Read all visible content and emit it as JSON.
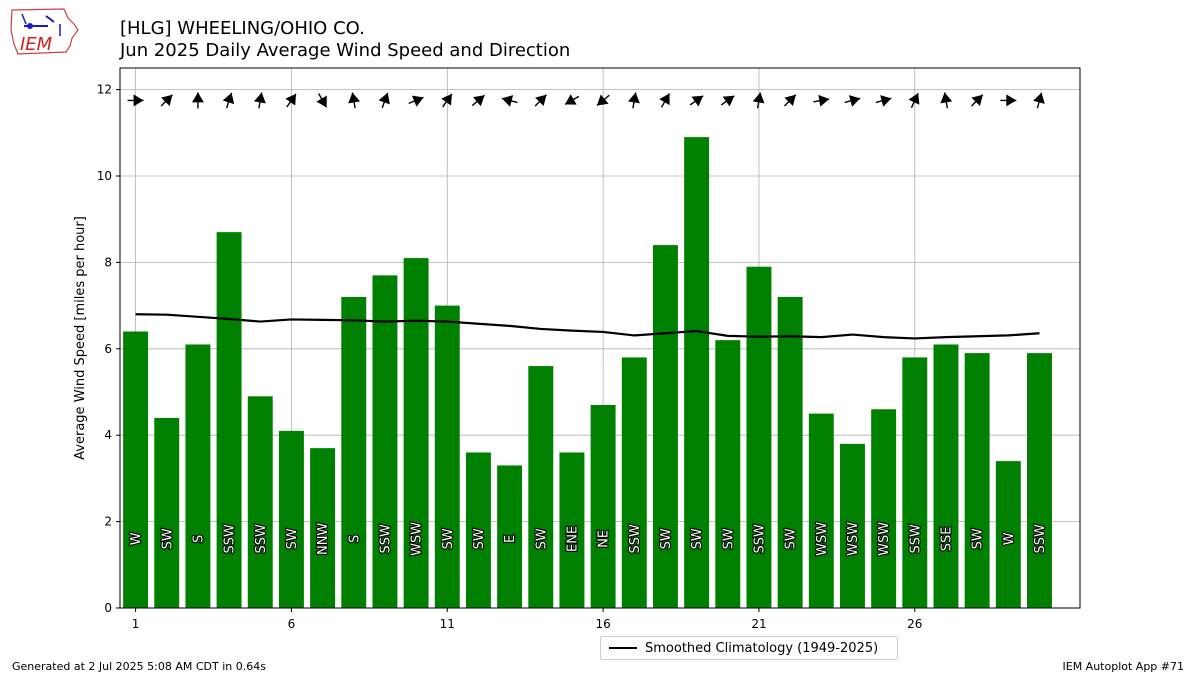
{
  "header": {
    "line1": "[HLG] WHEELING/OHIO CO.",
    "line2": "Jun 2025 Daily Average Wind Speed and Direction",
    "logo_text": "IEM"
  },
  "footer": {
    "generated": "Generated at 2 Jul 2025 5:08 AM CDT in 0.64s",
    "app": "IEM Autoplot App #71"
  },
  "legend": {
    "climatology_label": "Smoothed Climatology (1949-2025)"
  },
  "colors": {
    "bar": "#008000",
    "climatology": "#000000",
    "grid": "#b0b0b0"
  },
  "chart_data": {
    "type": "bar",
    "title": "[HLG] WHEELING/OHIO CO.",
    "subtitle": "Jun 2025 Daily Average Wind Speed and Direction",
    "xlabel": "",
    "ylabel": "Average Wind Speed [miles per hour]",
    "x": [
      1,
      2,
      3,
      4,
      5,
      6,
      7,
      8,
      9,
      10,
      11,
      12,
      13,
      14,
      15,
      16,
      17,
      18,
      19,
      20,
      21,
      22,
      23,
      24,
      25,
      26,
      27,
      28,
      29,
      30
    ],
    "xticks": [
      1,
      6,
      11,
      16,
      21,
      26
    ],
    "yticks": [
      0,
      2,
      4,
      6,
      8,
      10,
      12
    ],
    "xlim": [
      0.5,
      31.3
    ],
    "ylim": [
      0,
      12.5
    ],
    "grid": true,
    "legend_position": "bottom-center",
    "series": [
      {
        "name": "Average Wind Speed",
        "type": "bar",
        "values": [
          6.4,
          4.4,
          6.1,
          8.7,
          4.9,
          4.1,
          3.7,
          7.2,
          7.7,
          8.1,
          7.0,
          3.6,
          3.3,
          5.6,
          3.6,
          4.7,
          5.8,
          8.4,
          10.9,
          6.2,
          7.9,
          7.2,
          4.5,
          3.8,
          4.6,
          5.8,
          6.1,
          5.9,
          3.4,
          5.9
        ]
      },
      {
        "name": "Smoothed Climatology (1949-2025)",
        "type": "line",
        "values": [
          6.8,
          6.79,
          6.74,
          6.69,
          6.63,
          6.68,
          6.67,
          6.66,
          6.63,
          6.65,
          6.63,
          6.58,
          6.53,
          6.46,
          6.42,
          6.39,
          6.31,
          6.36,
          6.41,
          6.3,
          6.28,
          6.29,
          6.27,
          6.33,
          6.27,
          6.24,
          6.27,
          6.29,
          6.31,
          6.36
        ]
      }
    ],
    "direction_labels": [
      "W",
      "SW",
      "S",
      "SSW",
      "SSW",
      "SW",
      "NNW",
      "S",
      "SSW",
      "WSW",
      "SW",
      "SW",
      "E",
      "SW",
      "ENE",
      "NE",
      "SSW",
      "SW",
      "SW",
      "SW",
      "SSW",
      "SW",
      "WSW",
      "WSW",
      "WSW",
      "SSW",
      "SSE",
      "SW",
      "W",
      "SSW"
    ],
    "direction_arrow_angles_deg": [
      0,
      45,
      90,
      72,
      80,
      55,
      -60,
      100,
      70,
      22,
      55,
      40,
      165,
      45,
      210,
      220,
      80,
      60,
      35,
      35,
      80,
      45,
      10,
      15,
      15,
      65,
      100,
      45,
      0,
      75
    ],
    "arrow_row_value": 11.75
  }
}
